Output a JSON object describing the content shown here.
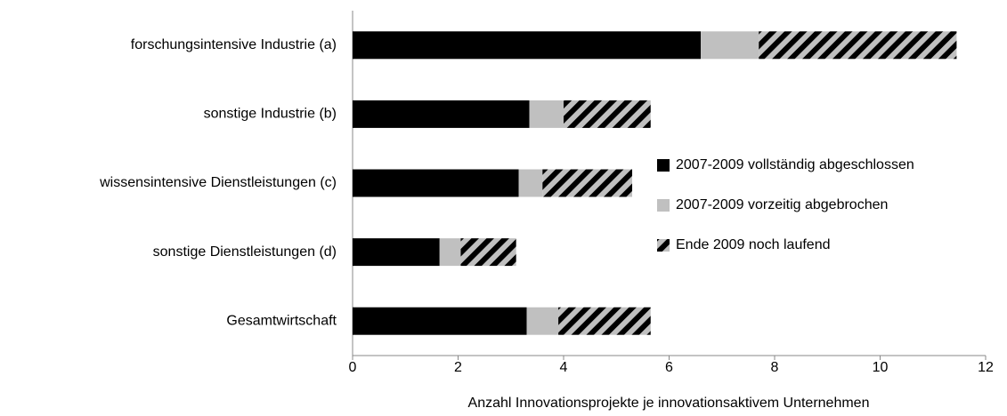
{
  "chart_data": {
    "type": "hbar_stacked",
    "categories": [
      "forschungsintensive Industrie (a)",
      "sonstige Industrie (b)",
      "wissensintensive Dienstleistungen (c)",
      "sonstige Dienstleistungen (d)",
      "Gesamtwirtschaft"
    ],
    "series": [
      {
        "name": "2007-2009 vollständig abgeschlossen",
        "color": "#000000",
        "values": [
          6.6,
          3.35,
          3.15,
          1.65,
          3.3
        ]
      },
      {
        "name": "2007-2009 vorzeitig abgebrochen",
        "color": "#c0c0c0",
        "values": [
          1.1,
          0.65,
          0.45,
          0.4,
          0.6
        ]
      },
      {
        "name": "Ende 2009 noch laufend",
        "color": "#c0c0c0",
        "hatch": true,
        "values": [
          3.75,
          1.65,
          1.7,
          1.05,
          1.75
        ]
      }
    ],
    "xlim": [
      0,
      12
    ],
    "xticks": [
      0,
      2,
      4,
      6,
      8,
      10,
      12
    ],
    "xlabel": "Anzahl Innovationsprojekte je innovationsaktivem Unternehmen",
    "legend": "right"
  }
}
